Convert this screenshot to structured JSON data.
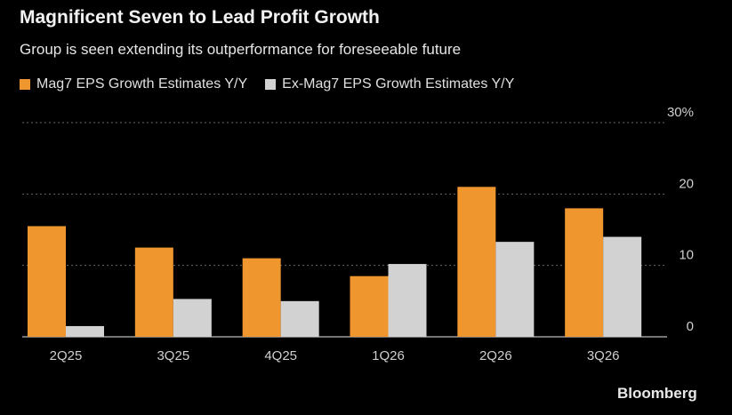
{
  "header": {
    "title": "Magnificent Seven to Lead Profit Growth",
    "subtitle": "Group is seen extending its outperformance for foreseeable future"
  },
  "source": "Bloomberg",
  "colors": {
    "mag7": "#f0962f",
    "ex_mag7": "#d2d2d2",
    "grid": "#6a6a6a",
    "background": "#000000"
  },
  "chart_data": {
    "type": "bar",
    "categories": [
      "2Q25",
      "3Q25",
      "4Q25",
      "1Q26",
      "2Q26",
      "3Q26"
    ],
    "series": [
      {
        "name": "Mag7 EPS Growth Estimates Y/Y",
        "values": [
          15.5,
          12.5,
          11.0,
          8.5,
          21.0,
          18.0
        ]
      },
      {
        "name": "Ex-Mag7 EPS Growth Estimates Y/Y",
        "values": [
          1.5,
          5.3,
          5.0,
          10.2,
          13.3,
          14.0
        ]
      }
    ],
    "yticks": [
      "0",
      "10",
      "20",
      "30%"
    ],
    "ylim": [
      0,
      30
    ],
    "grid": true,
    "legend_position": "top-left"
  }
}
